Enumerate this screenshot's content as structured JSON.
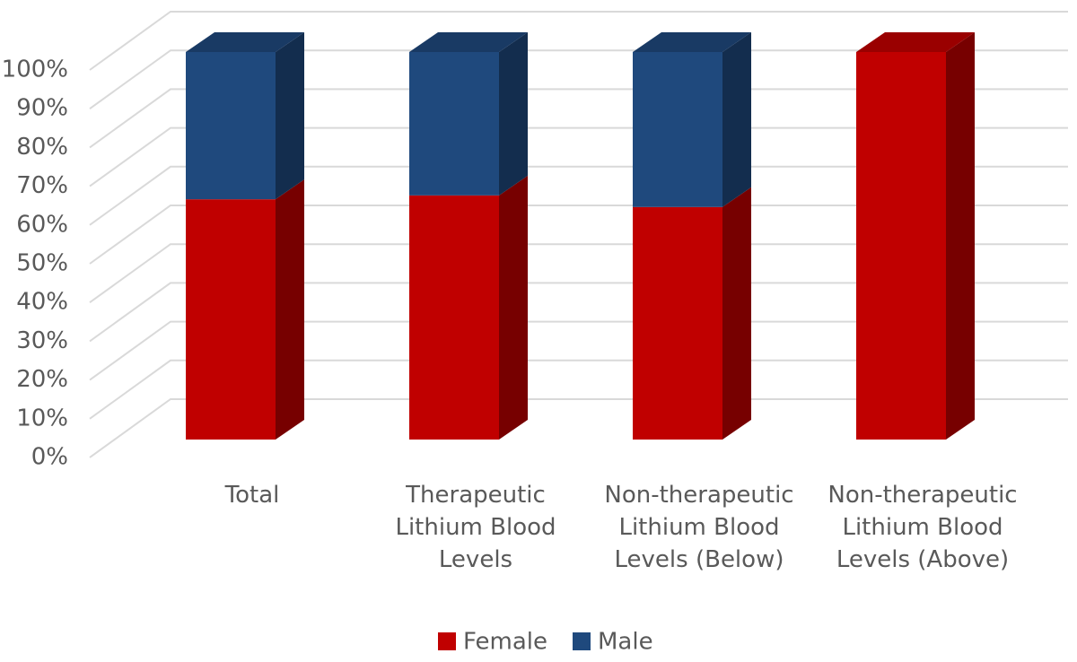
{
  "chart_data": {
    "type": "bar3d_stacked_percent",
    "categories": [
      "Total",
      "Therapeutic Lithium Blood Levels",
      "Non-therapeutic Lithium Blood Levels (Below)",
      "Non-therapeutic Lithium Blood Levels (Above)"
    ],
    "series": [
      {
        "name": "Female",
        "color": "#c00000",
        "values": [
          62,
          63,
          60,
          100
        ]
      },
      {
        "name": "Male",
        "color": "#1f497d",
        "values": [
          38,
          37,
          40,
          0
        ]
      }
    ],
    "ylim": [
      0,
      100
    ],
    "yticks": [
      {
        "value": 0,
        "label": "0%"
      },
      {
        "value": 10,
        "label": "10%"
      },
      {
        "value": 20,
        "label": "20%"
      },
      {
        "value": 30,
        "label": "30%"
      },
      {
        "value": 40,
        "label": "40%"
      },
      {
        "value": 50,
        "label": "50%"
      },
      {
        "value": 60,
        "label": "60%"
      },
      {
        "value": 70,
        "label": "70%"
      },
      {
        "value": 80,
        "label": "80%"
      },
      {
        "value": 90,
        "label": "90%"
      },
      {
        "value": 100,
        "label": "100%"
      }
    ],
    "grid": true,
    "legend": "bottom"
  }
}
